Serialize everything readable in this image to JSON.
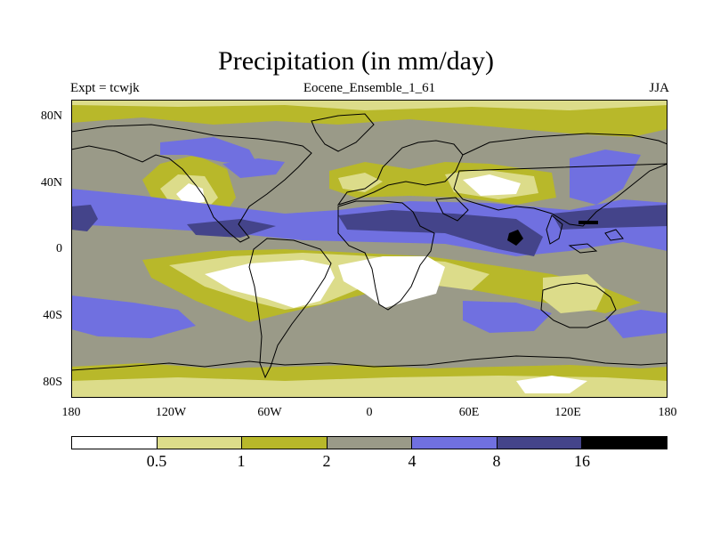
{
  "title": "Precipitation (in mm/day)",
  "experiment_label": "Expt = tcwjk",
  "ensemble_label": "Eocene_Ensemble_1_61",
  "season_label": "JJA",
  "colors": {
    "level0": "#ffffff",
    "level1": "#dcdc8a",
    "level2": "#b8b82a",
    "level3": "#9a9a88",
    "level4": "#7070e0",
    "level5": "#44448a",
    "level6": "#000000",
    "coast": "#000000"
  },
  "chart_data": {
    "type": "heatmap",
    "title": "Precipitation (in mm/day)",
    "projection": "cylindrical-equidistant",
    "xlim": [
      -180,
      180
    ],
    "ylim": [
      -90,
      90
    ],
    "x_ticks": [
      "180",
      "120W",
      "60W",
      "0",
      "60E",
      "120E",
      "180"
    ],
    "y_ticks": [
      "80N",
      "40N",
      "0",
      "40S",
      "80S"
    ],
    "contour_levels": [
      "0.5",
      "1",
      "2",
      "4",
      "8",
      "16"
    ],
    "color_scale": [
      "#ffffff",
      "#dcdc8a",
      "#b8b82a",
      "#9a9a88",
      "#7070e0",
      "#44448a",
      "#000000"
    ],
    "grid": false,
    "legend": "bottom colorbar"
  }
}
